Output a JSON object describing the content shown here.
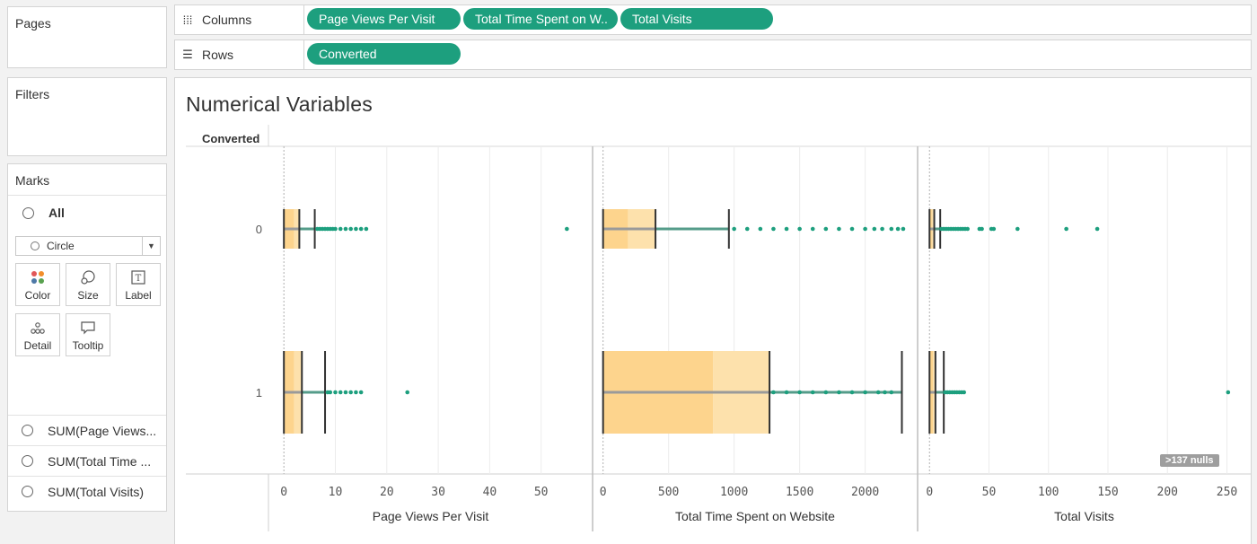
{
  "pages": {
    "title": "Pages"
  },
  "filters": {
    "title": "Filters"
  },
  "marks": {
    "title": "Marks",
    "all_label": "All",
    "mark_type": "Circle",
    "buttons": [
      {
        "label": "Color",
        "icon": "color-icon"
      },
      {
        "label": "Size",
        "icon": "size-icon"
      },
      {
        "label": "Label",
        "icon": "label-icon"
      },
      {
        "label": "Detail",
        "icon": "detail-icon"
      },
      {
        "label": "Tooltip",
        "icon": "tooltip-icon"
      }
    ],
    "fields": [
      "SUM(Page Views...",
      "SUM(Total Time ...",
      "SUM(Total Visits)"
    ]
  },
  "shelves": {
    "columns_label": "Columns",
    "rows_label": "Rows",
    "columns_pills": [
      "Page Views Per Visit",
      "Total Time Spent on W..",
      "Total Visits"
    ],
    "rows_pills": [
      "Converted"
    ]
  },
  "view": {
    "title": "Numerical Variables",
    "row_header": "Converted",
    "nulls_badge": "137 nulls"
  },
  "colors": {
    "pill": "#1d9f7e",
    "box_fill": "#fdd48d",
    "box_fill_light": "#fde1ac",
    "point": "#1d9f7e",
    "median_band": "#9a9a9a"
  },
  "chart_data": {
    "type": "scatter",
    "rows": [
      "0",
      "1"
    ],
    "panes": [
      {
        "xlabel": "Page Views Per Visit",
        "xlim": [
          -3,
          60
        ],
        "ticks": [
          0,
          10,
          20,
          30,
          40,
          50
        ],
        "rows": [
          {
            "category": "0",
            "box": {
              "q1": 0,
              "median": 2,
              "q3": 3,
              "whisker_low": 0,
              "whisker_high": 6
            },
            "outliers": [
              6.5,
              7,
              7.5,
              8,
              8.5,
              9,
              9.5,
              10,
              11,
              12,
              13,
              14,
              15,
              16,
              55
            ]
          },
          {
            "category": "1",
            "box": {
              "q1": 0,
              "median": 2,
              "q3": 3.5,
              "whisker_low": 0,
              "whisker_high": 8
            },
            "outliers": [
              8.5,
              9,
              10,
              11,
              12,
              13,
              14,
              15,
              24
            ]
          }
        ]
      },
      {
        "xlabel": "Total Time Spent on Website",
        "xlim": [
          -80,
          2400
        ],
        "ticks": [
          0,
          500,
          1000,
          1500,
          2000
        ],
        "rows": [
          {
            "category": "0",
            "box": {
              "q1": 0,
              "median": 190,
              "q3": 400,
              "whisker_low": 0,
              "whisker_high": 960
            },
            "outliers": [
              1000,
              1100,
              1200,
              1300,
              1400,
              1500,
              1600,
              1700,
              1800,
              1900,
              2000,
              2070,
              2130,
              2200,
              2250,
              2290
            ]
          },
          {
            "category": "1",
            "box": {
              "q1": 0,
              "median": 840,
              "q3": 1270,
              "whisker_low": 0,
              "whisker_high": 2280
            },
            "outliers": [
              1300,
              1400,
              1500,
              1600,
              1700,
              1800,
              1900,
              2000,
              2100,
              2150,
              2200
            ]
          }
        ]
      },
      {
        "xlabel": "Total Visits",
        "xlim": [
          -10,
          270
        ],
        "ticks": [
          0,
          50,
          100,
          150,
          200,
          250
        ],
        "rows": [
          {
            "category": "0",
            "box": {
              "q1": 0,
              "median": 2,
              "q3": 4,
              "whisker_low": 0,
              "whisker_high": 9
            },
            "outliers": [
              10,
              12,
              14,
              16,
              18,
              20,
              22,
              24,
              26,
              28,
              30,
              32,
              42,
              44,
              52,
              54,
              74,
              115,
              141
            ]
          },
          {
            "category": "1",
            "box": {
              "q1": 0,
              "median": 3,
              "q3": 5,
              "whisker_low": 0,
              "whisker_high": 12
            },
            "outliers": [
              13,
              15,
              17,
              19,
              21,
              23,
              25,
              27,
              29,
              251
            ]
          }
        ]
      }
    ]
  }
}
